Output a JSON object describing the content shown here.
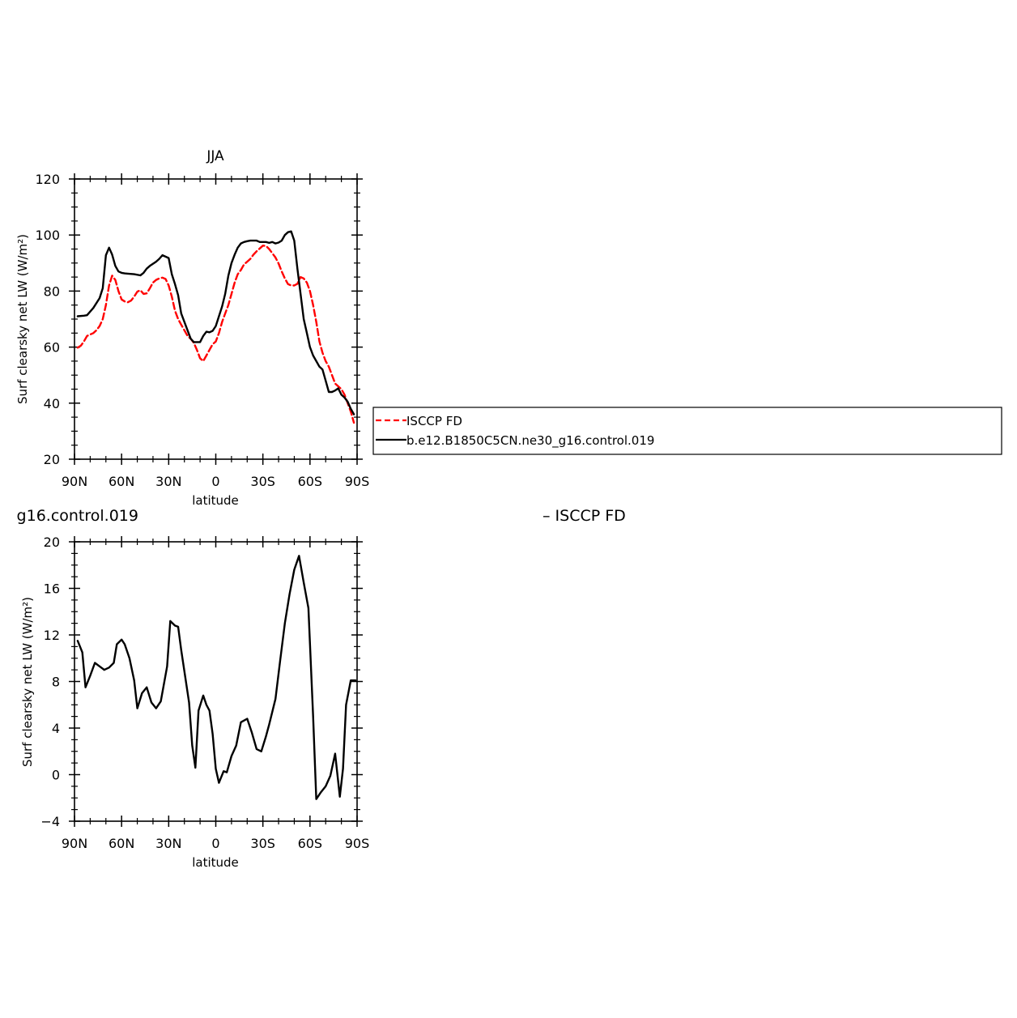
{
  "chart_data": [
    {
      "type": "line",
      "title": "JJA",
      "xlabel": "latitude",
      "ylabel": "Surf clearsky net LW (W/m²)",
      "ylim": [
        20,
        120
      ],
      "yticks": [
        "20",
        "40",
        "60",
        "80",
        "100",
        "120"
      ],
      "xlim": [
        90,
        -90
      ],
      "xtick_values": [
        90,
        60,
        30,
        0,
        -30,
        -60,
        -90
      ],
      "xtick_labels": [
        "90N",
        "60N",
        "30N",
        "0",
        "30S",
        "60S",
        "90S"
      ],
      "grid": false,
      "legend": {
        "placement": "right",
        "entries": [
          "ISCCP FD",
          "b.e12.B1850C5CN.ne30_g16.control.019"
        ]
      },
      "series": [
        {
          "name": "ISCCP FD",
          "color": "#ff0000",
          "dash": true,
          "x": [
            88,
            86,
            84,
            82,
            80,
            78,
            76,
            74,
            72,
            70,
            68,
            66,
            64,
            62,
            60,
            58,
            56,
            54,
            52,
            50,
            48,
            46,
            44,
            42,
            40,
            38,
            36,
            34,
            32,
            30,
            28,
            26,
            24,
            22,
            20,
            18,
            16,
            14,
            12,
            10,
            8,
            6,
            4,
            2,
            0,
            -2,
            -4,
            -6,
            -8,
            -10,
            -12,
            -14,
            -16,
            -18,
            -20,
            -22,
            -24,
            -26,
            -28,
            -30,
            -32,
            -34,
            -36,
            -38,
            -40,
            -42,
            -44,
            -46,
            -48,
            -50,
            -52,
            -54,
            -56,
            -58,
            -60,
            -62,
            -64,
            -66,
            -68,
            -70,
            -72,
            -74,
            -76,
            -78,
            -80,
            -82,
            -84,
            -86,
            -88
          ],
          "values": [
            59.8,
            60.5,
            62,
            64,
            64.5,
            65,
            66,
            67.5,
            70,
            75,
            82,
            85.5,
            84,
            80,
            77,
            76.3,
            76,
            76.6,
            78,
            79.8,
            80.3,
            79,
            79.2,
            81,
            83,
            84,
            84.5,
            84.8,
            84.3,
            82,
            78,
            73,
            70,
            68,
            66,
            64,
            63,
            61.5,
            59,
            56,
            55,
            57,
            59,
            61,
            62,
            65,
            69,
            72,
            75,
            79,
            83,
            86,
            87.5,
            89.5,
            90.5,
            91.5,
            93,
            94.2,
            95.2,
            96.2,
            96.1,
            95,
            93.5,
            92,
            89.8,
            87,
            84.5,
            82.5,
            82,
            82,
            82.6,
            85,
            84.5,
            83,
            80,
            75,
            69,
            62,
            58,
            55,
            53,
            50,
            47,
            46,
            45,
            43,
            40,
            37,
            33
          ]
        },
        {
          "name": "b.e12.B1850C5CN.ne30_g16.control.019",
          "color": "#000000",
          "dash": false,
          "x": [
            88,
            84,
            82,
            78,
            74,
            72,
            70,
            68,
            66,
            64,
            62,
            60,
            58,
            56,
            52,
            48,
            46,
            44,
            42,
            38,
            36,
            34,
            30,
            28,
            26,
            24,
            22,
            18,
            16,
            14,
            12,
            10,
            8,
            6,
            4,
            2,
            0,
            -2,
            -4,
            -6,
            -8,
            -10,
            -12,
            -14,
            -16,
            -18,
            -20,
            -22,
            -24,
            -26,
            -28,
            -30,
            -32,
            -34,
            -36,
            -38,
            -40,
            -42,
            -44,
            -46,
            -48,
            -50,
            -52,
            -54,
            -56,
            -58,
            -60,
            -62,
            -64,
            -66,
            -68,
            -70,
            -72,
            -74,
            -76,
            -78,
            -80,
            -82,
            -84,
            -86,
            -88
          ],
          "values": [
            71,
            71.2,
            71.4,
            74,
            77.5,
            81,
            92.8,
            95.5,
            93,
            89,
            87,
            86.5,
            86.3,
            86.2,
            86,
            85.6,
            86.5,
            88,
            89,
            90.5,
            91.5,
            92.8,
            91.8,
            86,
            82.5,
            78.5,
            72,
            66,
            63,
            61.8,
            61.8,
            61.8,
            64,
            65.5,
            65.3,
            65.8,
            67.5,
            71,
            74.5,
            79,
            85.5,
            90,
            93,
            95.5,
            97,
            97.5,
            97.8,
            98,
            98,
            98,
            97.5,
            97.5,
            97.5,
            97.2,
            97.5,
            97,
            97.3,
            98,
            100,
            101,
            101.3,
            98,
            88,
            79,
            70,
            65,
            60,
            57,
            55,
            53,
            52,
            48,
            44,
            44,
            44.5,
            45.3,
            43,
            42,
            40.5,
            38,
            36
          ]
        }
      ]
    },
    {
      "type": "line",
      "title": "g16.control.019",
      "title_right": "– ISCCP FD",
      "xlabel": "latitude",
      "ylabel": "Surf clearsky net LW (W/m²)",
      "ylim": [
        -4,
        20
      ],
      "yticks": [
        "−4",
        "0",
        "4",
        "8",
        "12",
        "16",
        "20"
      ],
      "xlim": [
        90,
        -90
      ],
      "xtick_values": [
        90,
        60,
        30,
        0,
        -30,
        -60,
        -90
      ],
      "xtick_labels": [
        "90N",
        "60N",
        "30N",
        "0",
        "30S",
        "60S",
        "90S"
      ],
      "grid": false,
      "series": [
        {
          "color": "#000000",
          "dash": false,
          "x": [
            88,
            85,
            83,
            80,
            77,
            74,
            71,
            68,
            65,
            63,
            60,
            58,
            55,
            52,
            50,
            47,
            44,
            41,
            38,
            35,
            31,
            29,
            26,
            24,
            22,
            17,
            15,
            13,
            11,
            8,
            6,
            4,
            2,
            0,
            -2,
            -5,
            -7,
            -10,
            -13,
            -16,
            -20,
            -23,
            -26,
            -29,
            -32,
            -34,
            -38,
            -41,
            -44,
            -47,
            -50,
            -53,
            -56,
            -59,
            -62,
            -64,
            -67,
            -70,
            -73,
            -76,
            -79,
            -81,
            -83,
            -86,
            -89
          ],
          "values": [
            11.5,
            10.5,
            7.5,
            8.5,
            9.6,
            9.3,
            9.0,
            9.2,
            9.6,
            11.2,
            11.6,
            11.2,
            10.0,
            8.1,
            5.7,
            7.0,
            7.5,
            6.2,
            5.7,
            6.3,
            9.3,
            13.2,
            12.8,
            12.7,
            10.7,
            6.2,
            2.5,
            0.6,
            5.5,
            6.8,
            6.0,
            5.5,
            3.5,
            0.5,
            -0.7,
            0.3,
            0.2,
            1.6,
            2.5,
            4.5,
            4.8,
            3.6,
            2.2,
            2.0,
            3.3,
            4.3,
            6.5,
            9.8,
            13,
            15.5,
            17.6,
            18.8,
            16.5,
            14.3,
            5.0,
            -2.1,
            -1.5,
            -1.0,
            -0.1,
            1.8,
            -1.9,
            0.5,
            6.0,
            8.1,
            8.1
          ]
        }
      ]
    }
  ]
}
